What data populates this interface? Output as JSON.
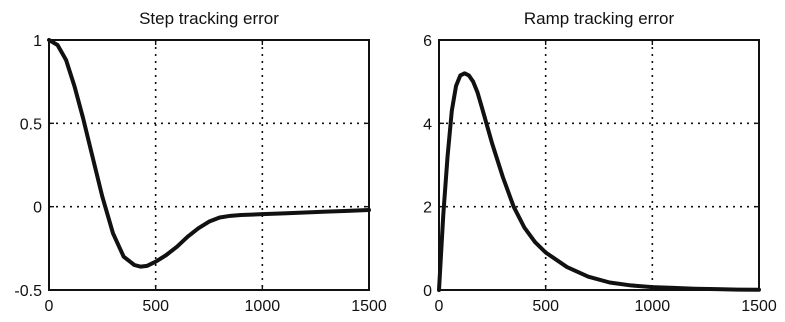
{
  "chart_data": [
    {
      "type": "line",
      "title": "Step tracking error",
      "xlabel": "",
      "ylabel": "",
      "xlim": [
        0,
        1500
      ],
      "ylim": [
        -0.5,
        1
      ],
      "xticks": [
        0,
        500,
        1000,
        1500
      ],
      "xtick_labels": [
        "0",
        "500",
        "1000",
        "1500"
      ],
      "yticks": [
        -0.5,
        0,
        0.5,
        1
      ],
      "ytick_labels": [
        "-0.5",
        "0",
        "0.5",
        "1"
      ],
      "grid": true,
      "series": [
        {
          "x": [
            0,
            40,
            80,
            120,
            160,
            200,
            250,
            300,
            350,
            400,
            430,
            460,
            500,
            550,
            600,
            650,
            700,
            750,
            800,
            850,
            900,
            1000,
            1100,
            1200,
            1300,
            1400,
            1500
          ],
          "y": [
            1.0,
            0.97,
            0.88,
            0.72,
            0.53,
            0.32,
            0.06,
            -0.16,
            -0.3,
            -0.35,
            -0.36,
            -0.355,
            -0.33,
            -0.29,
            -0.24,
            -0.18,
            -0.13,
            -0.09,
            -0.065,
            -0.055,
            -0.05,
            -0.045,
            -0.04,
            -0.035,
            -0.03,
            -0.025,
            -0.02
          ]
        }
      ]
    },
    {
      "type": "line",
      "title": "Ramp tracking error",
      "xlabel": "",
      "ylabel": "",
      "xlim": [
        0,
        1500
      ],
      "ylim": [
        0,
        6
      ],
      "xticks": [
        0,
        500,
        1000,
        1500
      ],
      "xtick_labels": [
        "0",
        "500",
        "1000",
        "1500"
      ],
      "yticks": [
        0,
        2,
        4,
        6
      ],
      "ytick_labels": [
        "0",
        "2",
        "4",
        "6"
      ],
      "grid": true,
      "series": [
        {
          "x": [
            0,
            20,
            40,
            60,
            80,
            100,
            120,
            140,
            160,
            180,
            200,
            250,
            300,
            350,
            400,
            450,
            500,
            600,
            700,
            800,
            900,
            1000,
            1100,
            1200,
            1300,
            1400,
            1500
          ],
          "y": [
            0.0,
            1.8,
            3.2,
            4.3,
            4.9,
            5.15,
            5.2,
            5.15,
            5.0,
            4.75,
            4.4,
            3.5,
            2.7,
            2.0,
            1.5,
            1.15,
            0.9,
            0.55,
            0.32,
            0.18,
            0.11,
            0.07,
            0.05,
            0.03,
            0.02,
            0.01,
            0.005
          ]
        }
      ]
    }
  ]
}
